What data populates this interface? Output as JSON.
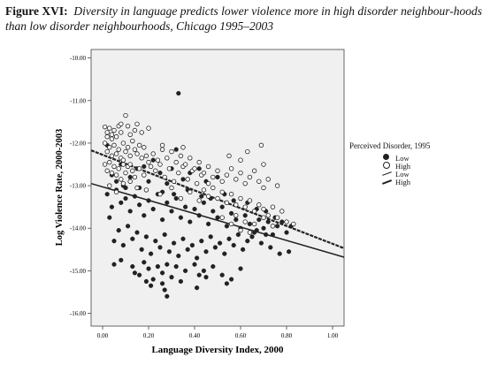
{
  "caption": {
    "figure_label": "Figure XVI:",
    "text": "Diversity in language predicts lower violence more in high disorder neighbour-hoods than low disorder neighbourhoods, Chicago 1995–2003"
  },
  "legend": {
    "title": "Perceived Disorder, 1995",
    "entries": [
      {
        "label": "Low",
        "symbol": "filled-circle"
      },
      {
        "label": "High",
        "symbol": "open-circle"
      },
      {
        "label": "Low",
        "symbol": "thin-line"
      },
      {
        "label": "High",
        "symbol": "thick-dashed-line"
      }
    ]
  },
  "chart_data": {
    "type": "scatter",
    "xlabel": "Language Diversity Index, 2000",
    "ylabel": "Log Violence Rate, 2000-2003",
    "xlim": [
      -0.05,
      1.05
    ],
    "ylim": [
      -16.3,
      -9.8
    ],
    "x_ticks": [
      0.0,
      0.2,
      0.4,
      0.6,
      0.8,
      1.0
    ],
    "x_tick_labels": [
      "0.00",
      "0.20",
      "0.40",
      "0.60",
      "0.80",
      "1.00"
    ],
    "y_ticks": [
      -10,
      -11,
      -12,
      -13,
      -14,
      -15,
      -16
    ],
    "y_tick_labels": [
      "-10.00",
      "-11.00",
      "-12.00",
      "-13.00",
      "-14.00",
      "-15.00",
      "-16.00"
    ],
    "background": "#f0f0f0",
    "grid": false,
    "legend_position": "right",
    "series": [
      {
        "name": "Low",
        "marker": "filled-circle",
        "color": "#222222",
        "fit_line": {
          "style": "solid",
          "x": [
            -0.05,
            1.05
          ],
          "y": [
            -12.95,
            -14.68
          ]
        },
        "points": [
          [
            0.33,
            -10.83
          ],
          [
            0.02,
            -12.05
          ],
          [
            0.04,
            -12.75
          ],
          [
            0.06,
            -12.9
          ],
          [
            0.08,
            -12.5
          ],
          [
            0.1,
            -13.05
          ],
          [
            0.12,
            -12.8
          ],
          [
            0.15,
            -12.6
          ],
          [
            0.18,
            -12.55
          ],
          [
            0.2,
            -12.9
          ],
          [
            0.22,
            -12.4
          ],
          [
            0.25,
            -12.7
          ],
          [
            0.28,
            -12.95
          ],
          [
            0.3,
            -12.6
          ],
          [
            0.32,
            -12.15
          ],
          [
            0.35,
            -12.85
          ],
          [
            0.38,
            -12.7
          ],
          [
            0.42,
            -12.6
          ],
          [
            0.45,
            -12.9
          ],
          [
            0.5,
            -12.8
          ],
          [
            0.02,
            -13.2
          ],
          [
            0.04,
            -13.5
          ],
          [
            0.06,
            -13.1
          ],
          [
            0.08,
            -13.4
          ],
          [
            0.1,
            -13.3
          ],
          [
            0.12,
            -13.6
          ],
          [
            0.14,
            -13.25
          ],
          [
            0.16,
            -13.45
          ],
          [
            0.18,
            -13.7
          ],
          [
            0.2,
            -13.35
          ],
          [
            0.22,
            -13.55
          ],
          [
            0.24,
            -13.2
          ],
          [
            0.26,
            -13.8
          ],
          [
            0.28,
            -13.4
          ],
          [
            0.3,
            -13.6
          ],
          [
            0.32,
            -13.3
          ],
          [
            0.34,
            -13.75
          ],
          [
            0.36,
            -13.5
          ],
          [
            0.38,
            -13.85
          ],
          [
            0.4,
            -13.55
          ],
          [
            0.42,
            -13.7
          ],
          [
            0.44,
            -13.4
          ],
          [
            0.46,
            -13.9
          ],
          [
            0.48,
            -13.6
          ],
          [
            0.5,
            -13.75
          ],
          [
            0.52,
            -13.5
          ],
          [
            0.54,
            -13.95
          ],
          [
            0.56,
            -13.65
          ],
          [
            0.58,
            -13.8
          ],
          [
            0.6,
            -14.0
          ],
          [
            0.62,
            -13.7
          ],
          [
            0.64,
            -13.9
          ],
          [
            0.66,
            -14.1
          ],
          [
            0.68,
            -13.8
          ],
          [
            0.7,
            -14.0
          ],
          [
            0.72,
            -13.85
          ],
          [
            0.74,
            -14.15
          ],
          [
            0.76,
            -13.95
          ],
          [
            0.8,
            -14.1
          ],
          [
            0.03,
            -13.75
          ],
          [
            0.05,
            -14.3
          ],
          [
            0.07,
            -14.05
          ],
          [
            0.09,
            -14.4
          ],
          [
            0.11,
            -13.95
          ],
          [
            0.13,
            -14.25
          ],
          [
            0.15,
            -14.1
          ],
          [
            0.17,
            -14.5
          ],
          [
            0.19,
            -14.2
          ],
          [
            0.21,
            -14.6
          ],
          [
            0.23,
            -14.3
          ],
          [
            0.25,
            -14.45
          ],
          [
            0.27,
            -14.15
          ],
          [
            0.29,
            -14.55
          ],
          [
            0.31,
            -14.35
          ],
          [
            0.33,
            -14.65
          ],
          [
            0.35,
            -14.25
          ],
          [
            0.37,
            -14.5
          ],
          [
            0.39,
            -14.4
          ],
          [
            0.41,
            -14.7
          ],
          [
            0.43,
            -14.3
          ],
          [
            0.45,
            -14.55
          ],
          [
            0.47,
            -14.2
          ],
          [
            0.49,
            -14.45
          ],
          [
            0.51,
            -14.35
          ],
          [
            0.53,
            -14.6
          ],
          [
            0.55,
            -14.25
          ],
          [
            0.57,
            -14.4
          ],
          [
            0.59,
            -14.15
          ],
          [
            0.61,
            -14.5
          ],
          [
            0.63,
            -14.3
          ],
          [
            0.65,
            -14.2
          ],
          [
            0.67,
            -14.05
          ],
          [
            0.69,
            -14.35
          ],
          [
            0.71,
            -14.15
          ],
          [
            0.73,
            -14.45
          ],
          [
            0.77,
            -14.6
          ],
          [
            0.81,
            -14.55
          ],
          [
            0.05,
            -14.85
          ],
          [
            0.08,
            -14.75
          ],
          [
            0.13,
            -14.9
          ],
          [
            0.16,
            -15.1
          ],
          [
            0.18,
            -14.8
          ],
          [
            0.2,
            -14.95
          ],
          [
            0.22,
            -15.2
          ],
          [
            0.24,
            -14.9
          ],
          [
            0.26,
            -15.05
          ],
          [
            0.28,
            -14.85
          ],
          [
            0.3,
            -15.15
          ],
          [
            0.32,
            -14.9
          ],
          [
            0.36,
            -15.0
          ],
          [
            0.4,
            -14.85
          ],
          [
            0.42,
            -15.1
          ],
          [
            0.44,
            -15.0
          ],
          [
            0.48,
            -14.9
          ],
          [
            0.52,
            -15.1
          ],
          [
            0.56,
            -15.2
          ],
          [
            0.6,
            -14.95
          ],
          [
            0.26,
            -15.3
          ],
          [
            0.27,
            -15.45
          ],
          [
            0.28,
            -15.6
          ],
          [
            0.21,
            -15.35
          ],
          [
            0.19,
            -15.25
          ],
          [
            0.34,
            -15.25
          ],
          [
            0.41,
            -15.4
          ],
          [
            0.45,
            -15.15
          ],
          [
            0.54,
            -15.3
          ],
          [
            0.14,
            -15.05
          ],
          [
            0.09,
            -13.0
          ],
          [
            0.16,
            -13.05
          ],
          [
            0.26,
            -13.15
          ],
          [
            0.31,
            -13.2
          ],
          [
            0.37,
            -13.1
          ],
          [
            0.43,
            -13.25
          ],
          [
            0.47,
            -13.3
          ],
          [
            0.53,
            -13.2
          ],
          [
            0.57,
            -13.35
          ],
          [
            0.63,
            -13.4
          ],
          [
            0.67,
            -13.55
          ],
          [
            0.71,
            -13.6
          ],
          [
            0.75,
            -13.75
          ],
          [
            0.78,
            -13.85
          ],
          [
            0.82,
            -13.95
          ]
        ]
      },
      {
        "name": "High",
        "marker": "open-circle",
        "color": "#222222",
        "fit_line": {
          "style": "dashed",
          "x": [
            -0.05,
            1.05
          ],
          "y": [
            -12.17,
            -14.47
          ]
        },
        "points": [
          [
            0.01,
            -11.62
          ],
          [
            0.02,
            -11.75
          ],
          [
            0.03,
            -11.65
          ],
          [
            0.04,
            -11.8
          ],
          [
            0.05,
            -11.7
          ],
          [
            0.06,
            -11.85
          ],
          [
            0.07,
            -11.6
          ],
          [
            0.08,
            -11.75
          ],
          [
            0.1,
            -11.35
          ],
          [
            0.12,
            -11.8
          ],
          [
            0.14,
            -11.7
          ],
          [
            0.17,
            -11.75
          ],
          [
            0.2,
            -11.65
          ],
          [
            0.01,
            -12.0
          ],
          [
            0.02,
            -12.2
          ],
          [
            0.03,
            -12.1
          ],
          [
            0.04,
            -12.3
          ],
          [
            0.05,
            -12.05
          ],
          [
            0.06,
            -12.25
          ],
          [
            0.07,
            -12.15
          ],
          [
            0.08,
            -12.35
          ],
          [
            0.09,
            -12.0
          ],
          [
            0.1,
            -12.2
          ],
          [
            0.11,
            -12.1
          ],
          [
            0.12,
            -12.3
          ],
          [
            0.13,
            -11.95
          ],
          [
            0.14,
            -12.15
          ],
          [
            0.15,
            -12.25
          ],
          [
            0.16,
            -12.05
          ],
          [
            0.17,
            -12.35
          ],
          [
            0.18,
            -12.1
          ],
          [
            0.19,
            -12.3
          ],
          [
            0.2,
            -12.45
          ],
          [
            0.01,
            -12.5
          ],
          [
            0.02,
            -12.65
          ],
          [
            0.03,
            -12.45
          ],
          [
            0.04,
            -12.7
          ],
          [
            0.05,
            -12.55
          ],
          [
            0.06,
            -12.75
          ],
          [
            0.07,
            -12.6
          ],
          [
            0.08,
            -12.85
          ],
          [
            0.09,
            -12.5
          ],
          [
            0.1,
            -12.7
          ],
          [
            0.11,
            -12.55
          ],
          [
            0.12,
            -12.9
          ],
          [
            0.13,
            -12.65
          ],
          [
            0.14,
            -12.8
          ],
          [
            0.16,
            -12.6
          ],
          [
            0.18,
            -12.75
          ],
          [
            0.21,
            -12.55
          ],
          [
            0.23,
            -12.65
          ],
          [
            0.25,
            -12.5
          ],
          [
            0.27,
            -12.8
          ],
          [
            0.29,
            -12.6
          ],
          [
            0.31,
            -12.9
          ],
          [
            0.33,
            -12.7
          ],
          [
            0.35,
            -12.55
          ],
          [
            0.37,
            -12.85
          ],
          [
            0.39,
            -12.65
          ],
          [
            0.41,
            -12.95
          ],
          [
            0.43,
            -12.75
          ],
          [
            0.22,
            -12.25
          ],
          [
            0.24,
            -12.4
          ],
          [
            0.26,
            -12.15
          ],
          [
            0.28,
            -12.35
          ],
          [
            0.3,
            -12.2
          ],
          [
            0.32,
            -12.45
          ],
          [
            0.34,
            -12.3
          ],
          [
            0.36,
            -12.5
          ],
          [
            0.38,
            -12.35
          ],
          [
            0.4,
            -12.6
          ],
          [
            0.42,
            -12.45
          ],
          [
            0.44,
            -12.7
          ],
          [
            0.46,
            -12.55
          ],
          [
            0.48,
            -12.8
          ],
          [
            0.5,
            -12.65
          ],
          [
            0.52,
            -12.9
          ],
          [
            0.54,
            -12.75
          ],
          [
            0.56,
            -12.6
          ],
          [
            0.58,
            -12.85
          ],
          [
            0.6,
            -12.7
          ],
          [
            0.62,
            -12.95
          ],
          [
            0.64,
            -12.8
          ],
          [
            0.66,
            -12.65
          ],
          [
            0.68,
            -12.9
          ],
          [
            0.7,
            -13.05
          ],
          [
            0.72,
            -12.85
          ],
          [
            0.76,
            -13.0
          ],
          [
            0.26,
            -12.05
          ],
          [
            0.35,
            -12.1
          ],
          [
            0.55,
            -12.3
          ],
          [
            0.6,
            -12.4
          ],
          [
            0.63,
            -12.2
          ],
          [
            0.69,
            -12.05
          ],
          [
            0.7,
            -12.5
          ],
          [
            0.46,
            -12.95
          ],
          [
            0.44,
            -13.1
          ],
          [
            0.46,
            -13.25
          ],
          [
            0.48,
            -13.05
          ],
          [
            0.5,
            -13.3
          ],
          [
            0.52,
            -13.15
          ],
          [
            0.54,
            -13.4
          ],
          [
            0.56,
            -13.2
          ],
          [
            0.58,
            -13.45
          ],
          [
            0.6,
            -13.3
          ],
          [
            0.62,
            -13.5
          ],
          [
            0.64,
            -13.35
          ],
          [
            0.66,
            -13.6
          ],
          [
            0.68,
            -13.45
          ],
          [
            0.7,
            -13.55
          ],
          [
            0.72,
            -13.7
          ],
          [
            0.74,
            -13.5
          ],
          [
            0.76,
            -13.75
          ],
          [
            0.78,
            -13.6
          ],
          [
            0.8,
            -13.85
          ],
          [
            0.03,
            -13.0
          ],
          [
            0.06,
            -13.15
          ],
          [
            0.09,
            -12.95
          ],
          [
            0.15,
            -13.05
          ],
          [
            0.19,
            -13.1
          ],
          [
            0.25,
            -13.2
          ],
          [
            0.3,
            -13.05
          ],
          [
            0.34,
            -13.3
          ],
          [
            0.38,
            -13.15
          ],
          [
            0.42,
            -13.35
          ],
          [
            0.58,
            -13.7
          ],
          [
            0.62,
            -13.85
          ],
          [
            0.66,
            -13.9
          ],
          [
            0.7,
            -13.75
          ],
          [
            0.74,
            -13.95
          ],
          [
            0.83,
            -13.9
          ],
          [
            0.52,
            -13.75
          ],
          [
            0.56,
            -13.9
          ],
          [
            0.6,
            -14.05
          ],
          [
            0.64,
            -14.1
          ],
          [
            0.04,
            -11.9
          ],
          [
            0.08,
            -11.55
          ],
          [
            0.11,
            -11.6
          ],
          [
            0.15,
            -11.55
          ],
          [
            0.02,
            -11.85
          ],
          [
            0.09,
            -12.4
          ],
          [
            0.12,
            -12.5
          ]
        ]
      }
    ]
  }
}
